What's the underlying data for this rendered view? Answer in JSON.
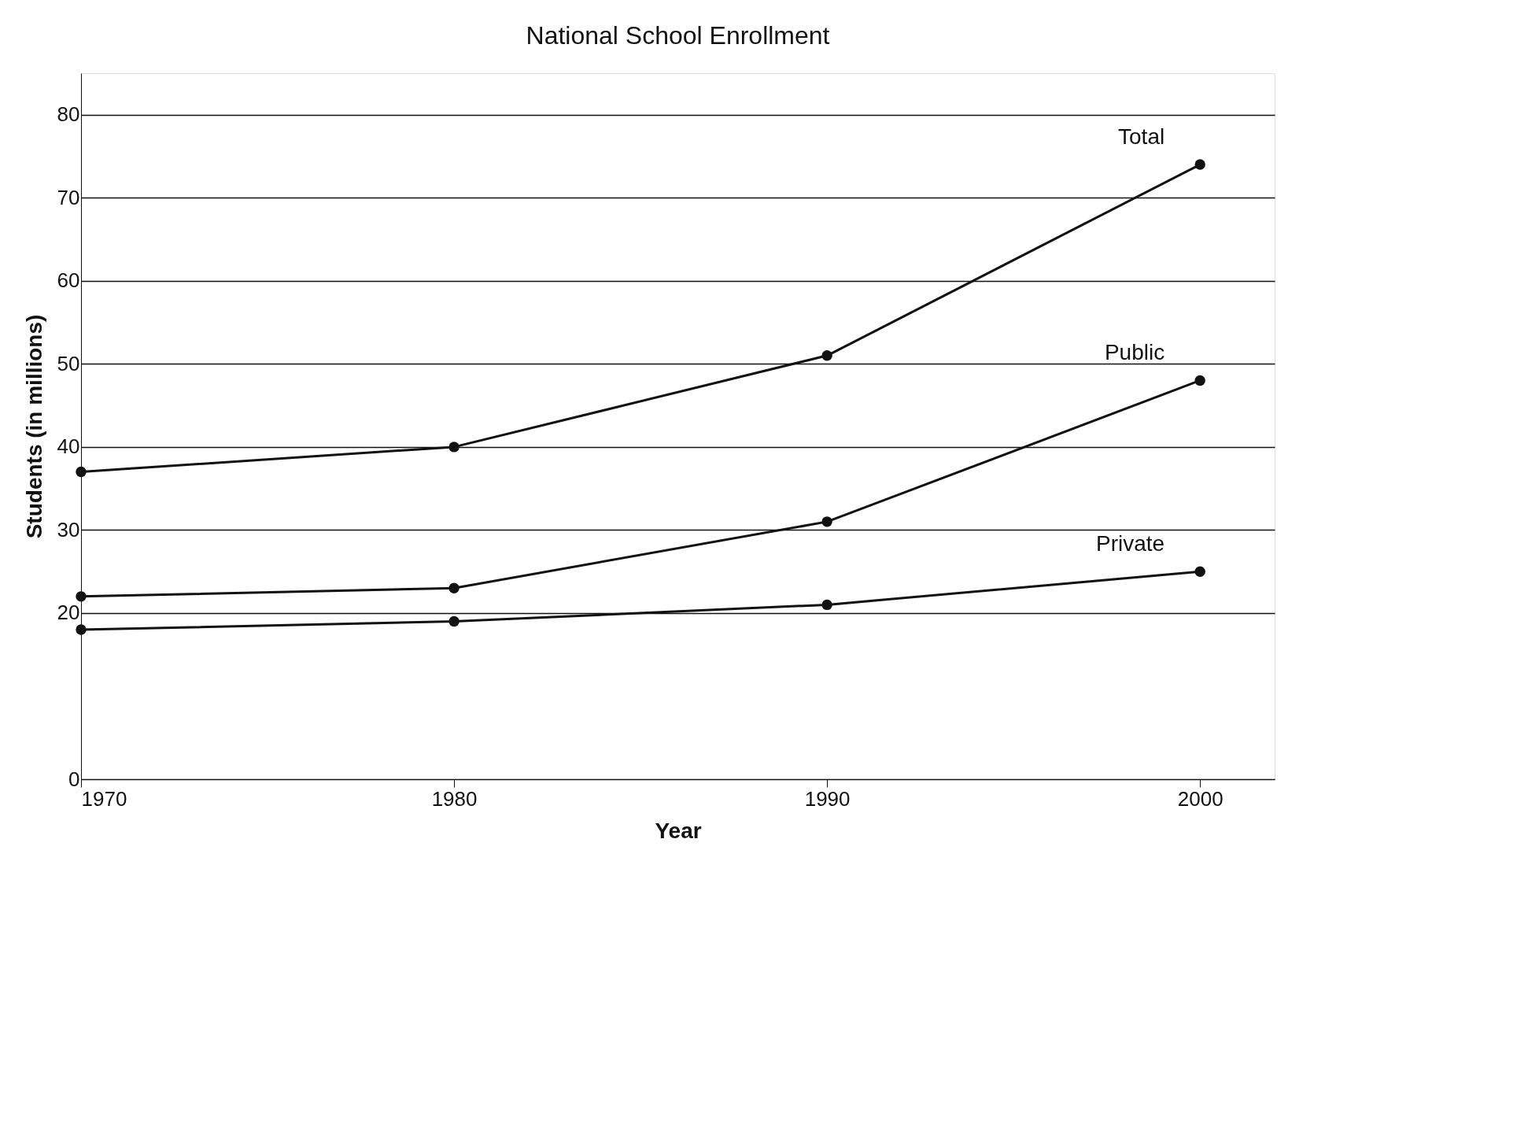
{
  "chart_data": {
    "type": "line",
    "title": "National School Enrollment",
    "xlabel": "Year",
    "ylabel": "Students (in millions)",
    "x": [
      1970,
      1980,
      1990,
      2000
    ],
    "series": [
      {
        "name": "Total",
        "color": "#111111",
        "values": [
          37,
          40,
          51,
          74
        ]
      },
      {
        "name": "Public",
        "color": "#111111",
        "values": [
          22,
          23,
          31,
          48
        ]
      },
      {
        "name": "Private",
        "color": "#111111",
        "values": [
          18,
          19,
          21,
          25
        ]
      }
    ],
    "xlim": [
      1970,
      2002
    ],
    "xticks": [
      1970,
      1980,
      1990,
      2000
    ],
    "ylim": [
      0,
      85
    ],
    "yticks": [
      0,
      20,
      30,
      40,
      50,
      60,
      70,
      80
    ],
    "grid": "y",
    "marker": "circle",
    "line_style": "solid",
    "legend": false
  }
}
